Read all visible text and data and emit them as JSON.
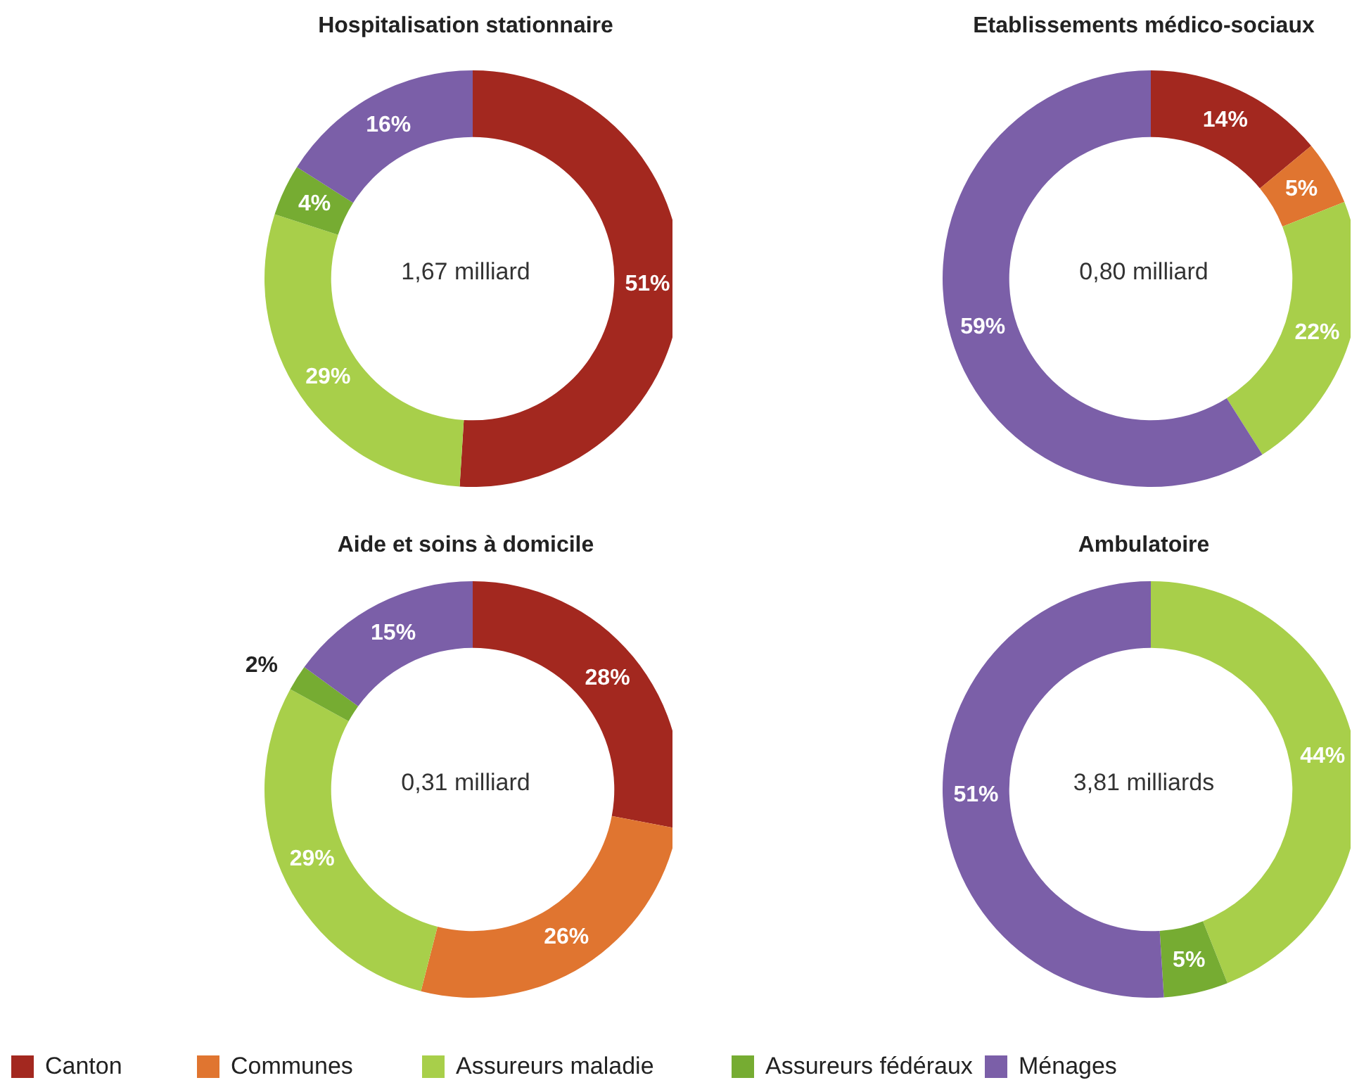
{
  "chart_data": [
    {
      "type": "donut",
      "title": "Hospitalisation stationnaire",
      "categories": [
        "Canton",
        "Communes",
        "Assureurs maladie",
        "Assureurs fédéraux",
        "Ménages"
      ],
      "values": [
        51,
        0,
        29,
        4,
        16
      ],
      "value_labels": [
        "51%",
        null,
        "29%",
        "4%",
        "16%"
      ],
      "colors": [
        "#a3281f",
        "#e07530",
        "#a8cf4a",
        "#76ac32",
        "#7b5fa8"
      ],
      "annotations": [
        "1,67 milliard"
      ],
      "legend": "bottom"
    },
    {
      "type": "donut",
      "title": "Etablissements médico-sociaux",
      "categories": [
        null,
        null,
        null,
        null,
        null
      ],
      "values": [
        14,
        5,
        22,
        0,
        59
      ],
      "value_labels": [
        "14%",
        "5%",
        "22%",
        null,
        "59%"
      ],
      "colors": [
        "#a3281f",
        "#e07530",
        "#a8cf4a",
        "#76ac32",
        "#7b5fa8"
      ],
      "annotations": [
        "0,80 milliard"
      ]
    },
    {
      "type": "donut",
      "title": "Aide et soins à domicile",
      "categories": [
        null,
        null,
        null,
        null,
        null
      ],
      "values": [
        28,
        26,
        29,
        2,
        15
      ],
      "value_labels": [
        "28%",
        "26%",
        "29%",
        "2%",
        "15%"
      ],
      "colors": [
        "#a3281f",
        "#e07530",
        "#a8cf4a",
        "#76ac32",
        "#7b5fa8"
      ],
      "annotations": [
        "0,31 milliard"
      ]
    },
    {
      "type": "donut",
      "title": "Ambulatoire",
      "categories": [
        null,
        null,
        null,
        null,
        null
      ],
      "values": [
        0,
        0,
        44,
        5,
        51
      ],
      "value_labels": [
        null,
        null,
        "44%",
        "5%",
        "51%"
      ],
      "colors": [
        "#a3281f",
        "#e07530",
        "#a8cf4a",
        "#76ac32",
        "#7b5fa8"
      ],
      "annotations": [
        "3,81 milliards"
      ]
    }
  ]
}
